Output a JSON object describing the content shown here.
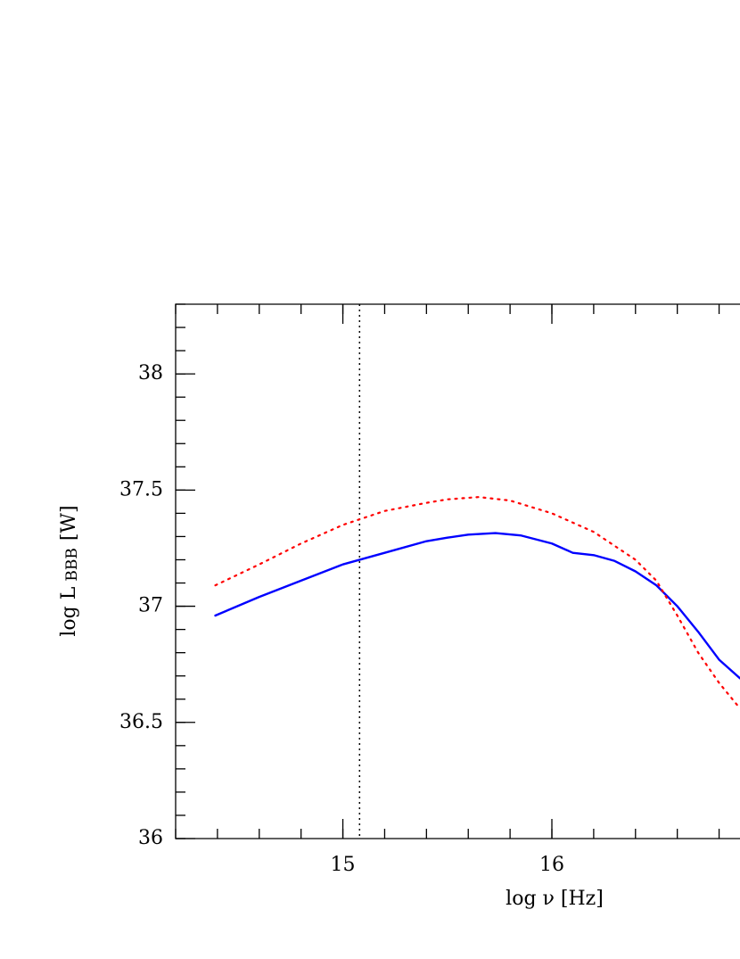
{
  "chart_data": {
    "type": "line",
    "xlabel": "log ν [Hz]",
    "ylabel": {
      "text": "log L",
      "sub": "BBB",
      "unit": "[W]"
    },
    "xlim": [
      14.2,
      16.9
    ],
    "ylim": [
      36,
      38.3
    ],
    "xticks": [
      15,
      16
    ],
    "yticks": [
      36,
      36.5,
      37,
      37.5,
      38
    ],
    "vline": {
      "x": 15.08,
      "color": "#000000"
    },
    "series": [
      {
        "color": "#0000ff",
        "style": "solid",
        "x": [
          14.39,
          14.6,
          14.8,
          15,
          15.2,
          15.4,
          15.5,
          15.6,
          15.73,
          15.85,
          16,
          16.1,
          16.2,
          16.3,
          16.4,
          16.5,
          16.6,
          16.7,
          16.75,
          16.8,
          16.9
        ],
        "values": [
          36.96,
          37.04,
          37.11,
          37.18,
          37.23,
          37.28,
          37.295,
          37.308,
          37.315,
          37.305,
          37.27,
          37.23,
          37.22,
          37.195,
          37.15,
          37.09,
          37.0,
          36.89,
          36.83,
          36.77,
          36.69
        ]
      },
      {
        "color": "#ff0000",
        "style": "dotted",
        "x": [
          14.39,
          14.6,
          14.8,
          15,
          15.2,
          15.4,
          15.5,
          15.65,
          15.8,
          16,
          16.2,
          16.4,
          16.5,
          16.6,
          16.7,
          16.8,
          16.9
        ],
        "values": [
          37.09,
          37.18,
          37.27,
          37.35,
          37.41,
          37.445,
          37.46,
          37.47,
          37.455,
          37.4,
          37.32,
          37.2,
          37.11,
          36.96,
          36.8,
          36.67,
          36.56
        ]
      }
    ]
  }
}
